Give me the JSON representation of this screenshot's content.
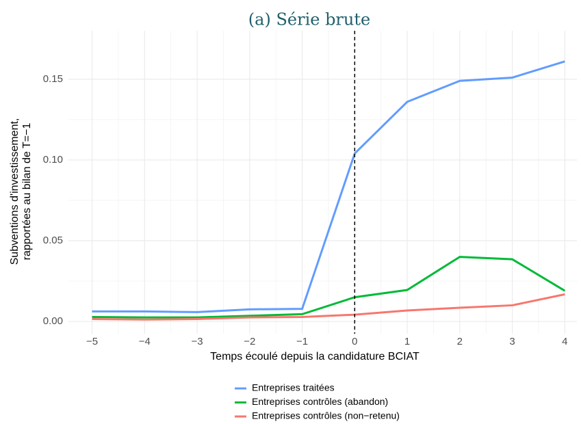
{
  "chart_data": {
    "type": "line",
    "title": "(a) Série brute",
    "x_label": "Temps écoulé depuis la candidature BCIAT",
    "y_label": [
      "Subventions d'investissement,",
      "rapportées au bilan de T=−1"
    ],
    "x": [
      -5,
      -4,
      -3,
      -2,
      -1,
      0,
      1,
      2,
      3,
      4
    ],
    "series": [
      {
        "name": "Entreprises traitées",
        "color": "#619cff",
        "values": [
          0.0062,
          0.0062,
          0.0058,
          0.0075,
          0.0078,
          0.104,
          0.136,
          0.149,
          0.151,
          0.161
        ]
      },
      {
        "name": "Entreprises contrôles (abandon)",
        "color": "#00ba38",
        "values": [
          0.0028,
          0.0025,
          0.0025,
          0.0035,
          0.0045,
          0.015,
          0.0195,
          0.04,
          0.0385,
          0.019
        ]
      },
      {
        "name": "Entreprises contrôles (non−retenu)",
        "color": "#f8766d",
        "values": [
          0.0015,
          0.0012,
          0.0015,
          0.0025,
          0.0028,
          0.0042,
          0.0068,
          0.0085,
          0.01,
          0.0168
        ]
      }
    ],
    "vline": 0,
    "xlim": [
      -5.45,
      4.23
    ],
    "ylim": [
      -0.0076,
      0.18
    ],
    "xticks": [
      {
        "value": -5,
        "label": "−5"
      },
      {
        "value": -4,
        "label": "−4"
      },
      {
        "value": -3,
        "label": "−3"
      },
      {
        "value": -2,
        "label": "−2"
      },
      {
        "value": -1,
        "label": "−1"
      },
      0,
      1,
      2,
      3,
      4
    ],
    "yticks": [
      {
        "value": 0,
        "label": "0.00"
      },
      {
        "value": 0.05,
        "label": "0.05"
      },
      {
        "value": 0.1,
        "label": "0.10"
      },
      {
        "value": 0.15,
        "label": "0.15"
      }
    ],
    "grid": true,
    "legend": "bottom"
  }
}
